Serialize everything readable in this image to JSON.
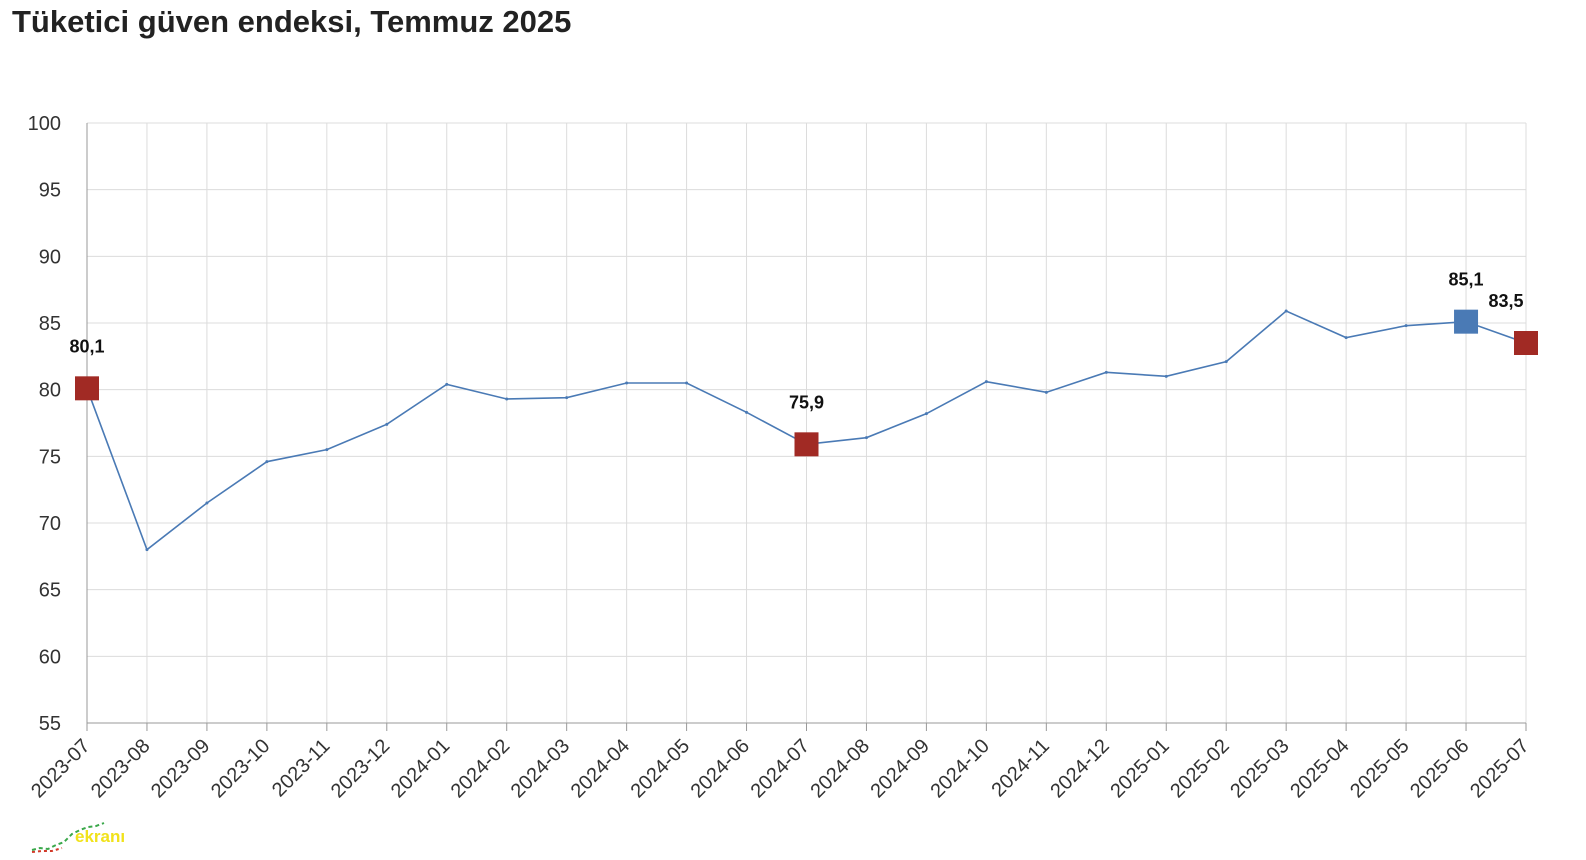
{
  "chart_data": {
    "type": "line",
    "title": "Tüketici güven endeksi, Temmuz 2025",
    "xlabel": "",
    "ylabel": "",
    "ylim": [
      55,
      100
    ],
    "yticks": [
      55,
      60,
      65,
      70,
      75,
      80,
      85,
      90,
      95,
      100
    ],
    "grid": true,
    "categories": [
      "2023-07",
      "2023-08",
      "2023-09",
      "2023-10",
      "2023-11",
      "2023-12",
      "2024-01",
      "2024-02",
      "2024-03",
      "2024-04",
      "2024-05",
      "2024-06",
      "2024-07",
      "2024-08",
      "2024-09",
      "2024-10",
      "2024-11",
      "2024-12",
      "2025-01",
      "2025-02",
      "2025-03",
      "2025-04",
      "2025-05",
      "2025-06",
      "2025-07"
    ],
    "series": [
      {
        "color": "#4a7ab5",
        "values": [
          80.1,
          68.0,
          71.5,
          74.6,
          75.5,
          77.4,
          80.4,
          79.3,
          79.4,
          80.5,
          80.5,
          78.3,
          75.9,
          76.4,
          78.2,
          80.6,
          79.8,
          81.3,
          81.0,
          82.1,
          85.9,
          83.9,
          84.8,
          85.1,
          83.5
        ]
      }
    ],
    "highlights": [
      {
        "category": "2023-07",
        "value": 80.1,
        "label": "80,1",
        "color": "#a12a24"
      },
      {
        "category": "2024-07",
        "value": 75.9,
        "label": "75,9",
        "color": "#a12a24"
      },
      {
        "category": "2025-06",
        "value": 85.1,
        "label": "85,1",
        "color": "#4a7ab5"
      },
      {
        "category": "2025-07",
        "value": 83.5,
        "label": "83,5",
        "color": "#a12a24"
      }
    ]
  },
  "logo": {
    "text": "ekranı",
    "color": "#f1e21a"
  }
}
